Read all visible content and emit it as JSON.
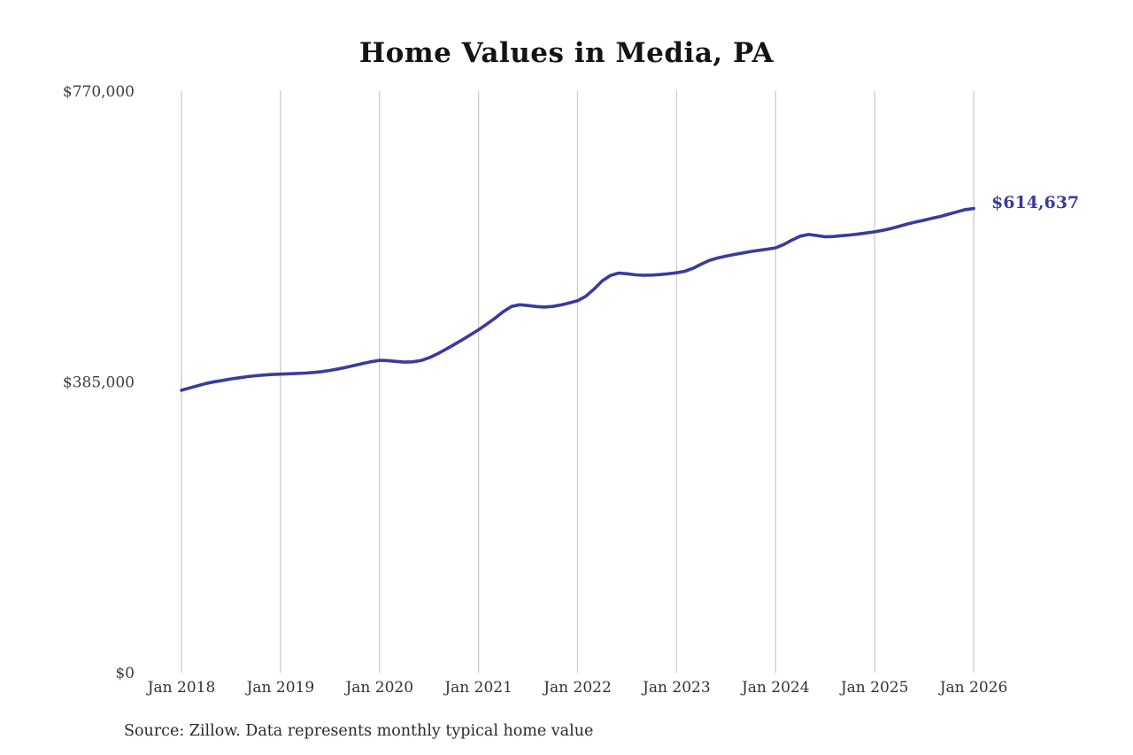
{
  "page": {
    "title": "Home Values in Media, PA",
    "source_note": "Source: Zillow. Data represents monthly typical home value",
    "end_label": "$614,637",
    "accent_color": "#3b3a9e",
    "grid_color": "#cbcbcb",
    "background_color": "#ffffff"
  },
  "chart_data": {
    "type": "line",
    "title": "Home Values in Media, PA",
    "xlabel": "",
    "ylabel": "",
    "ylim": [
      0,
      770000
    ],
    "grid": "vertical-only",
    "legend_position": "none",
    "y_ticks": [
      {
        "value": 0,
        "label": "$0"
      },
      {
        "value": 385000,
        "label": "$385,000"
      },
      {
        "value": 770000,
        "label": "$770,000"
      }
    ],
    "x_tick_labels": [
      "Jan 2018",
      "Jan 2019",
      "Jan 2020",
      "Jan 2021",
      "Jan 2022",
      "Jan 2023",
      "Jan 2024",
      "Jan 2025",
      "Jan 2026"
    ],
    "series": [
      {
        "name": "Monthly typical home value",
        "start": "Jan 2018",
        "interval": "monthly",
        "color": "#3b3a9e",
        "values": [
          374000,
          377000,
          380000,
          383000,
          385200,
          387000,
          389000,
          390500,
          392000,
          393200,
          394200,
          394800,
          395300,
          395800,
          396200,
          396700,
          397500,
          398600,
          400200,
          402200,
          404500,
          407000,
          409500,
          411800,
          413600,
          413200,
          412200,
          411200,
          411600,
          413200,
          417000,
          422000,
          428000,
          434200,
          440500,
          447200,
          454000,
          461500,
          469500,
          478000,
          485000,
          487200,
          486200,
          484800,
          484200,
          485000,
          487000,
          489500,
          492500,
          498500,
          508000,
          519000,
          526000,
          529200,
          528200,
          526800,
          526200,
          526500,
          527200,
          528200,
          529500,
          531500,
          535500,
          541000,
          546000,
          549200,
          551500,
          553800,
          555800,
          557800,
          559300,
          560800,
          562500,
          567000,
          573000,
          578000,
          580200,
          578800,
          577200,
          577600,
          578600,
          579600,
          580800,
          582200,
          583800,
          585800,
          588200,
          591200,
          594200,
          596800,
          599200,
          601800,
          604200,
          607200,
          610200,
          613200,
          614637
        ]
      }
    ],
    "final_value": 614637,
    "final_value_label": "$614,637"
  }
}
